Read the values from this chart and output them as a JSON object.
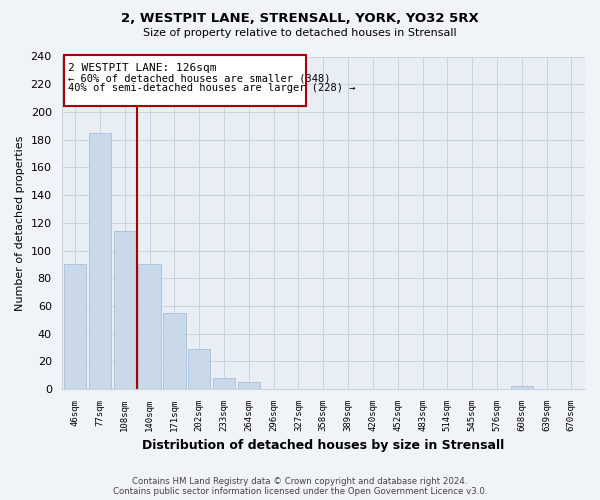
{
  "title1": "2, WESTPIT LANE, STRENSALL, YORK, YO32 5RX",
  "title2": "Size of property relative to detached houses in Strensall",
  "xlabel": "Distribution of detached houses by size in Strensall",
  "ylabel": "Number of detached properties",
  "bar_labels": [
    "46sqm",
    "77sqm",
    "108sqm",
    "140sqm",
    "171sqm",
    "202sqm",
    "233sqm",
    "264sqm",
    "296sqm",
    "327sqm",
    "358sqm",
    "389sqm",
    "420sqm",
    "452sqm",
    "483sqm",
    "514sqm",
    "545sqm",
    "576sqm",
    "608sqm",
    "639sqm",
    "670sqm"
  ],
  "bar_values": [
    90,
    185,
    114,
    90,
    55,
    29,
    8,
    5,
    0,
    0,
    0,
    0,
    0,
    0,
    0,
    0,
    0,
    0,
    2,
    0,
    0
  ],
  "bar_color": "#c9d9ea",
  "bar_edge_color": "#a8c0d8",
  "vline_x": 2.5,
  "vline_color": "#aa0000",
  "annotation_title": "2 WESTPIT LANE: 126sqm",
  "annotation_line1": "← 60% of detached houses are smaller (348)",
  "annotation_line2": "40% of semi-detached houses are larger (228) →",
  "annotation_box_facecolor": "#ffffff",
  "annotation_box_edgecolor": "#aa0000",
  "ylim": [
    0,
    240
  ],
  "yticks": [
    0,
    20,
    40,
    60,
    80,
    100,
    120,
    140,
    160,
    180,
    200,
    220,
    240
  ],
  "footer1": "Contains HM Land Registry data © Crown copyright and database right 2024.",
  "footer2": "Contains public sector information licensed under the Open Government Licence v3.0.",
  "bg_color": "#f0f4f8",
  "plot_bg_color": "#e8eef4",
  "grid_color": "#c8d4de"
}
